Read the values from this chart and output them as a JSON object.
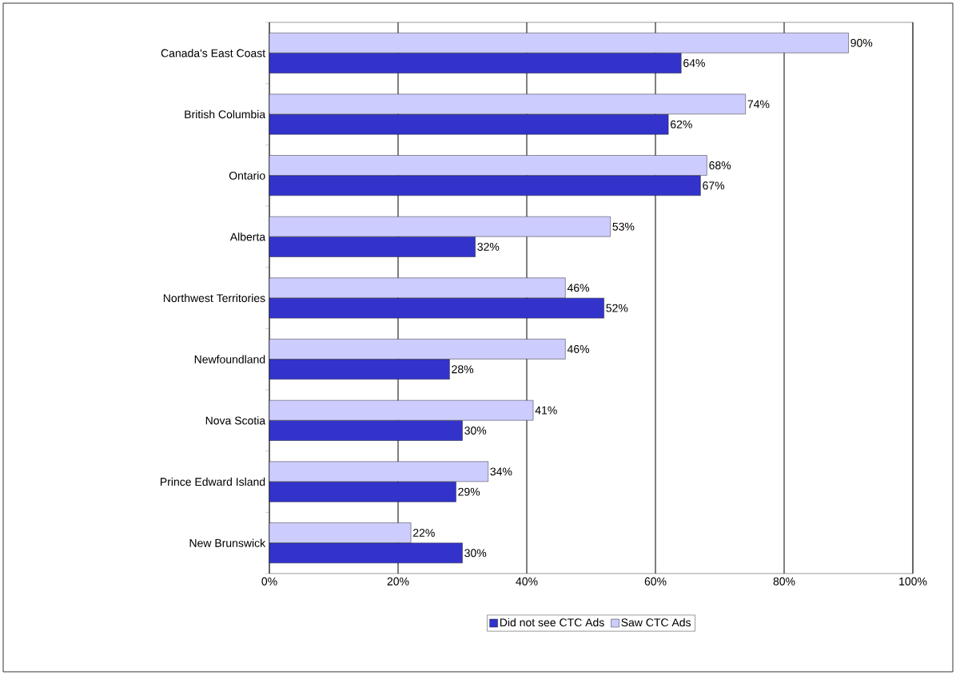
{
  "chart_data": {
    "type": "bar",
    "orientation": "horizontal",
    "categories": [
      "Canada's East Coast",
      "British Columbia",
      "Ontario",
      "Alberta",
      "Northwest Territories",
      "Newfoundland",
      "Nova Scotia",
      "Prince Edward Island",
      "New Brunswick"
    ],
    "series": [
      {
        "name": "Did not see CTC Ads",
        "color": "#3333cc",
        "values": [
          64,
          62,
          67,
          32,
          52,
          28,
          30,
          29,
          30
        ],
        "value_labels": [
          "64%",
          "62%",
          "67%",
          "32%",
          "52%",
          "28%",
          "30%",
          "29%",
          "30%"
        ]
      },
      {
        "name": "Saw CTC Ads",
        "color": "#ccccff",
        "values": [
          90,
          74,
          68,
          53,
          46,
          46,
          41,
          34,
          22
        ],
        "value_labels": [
          "90%",
          "74%",
          "68%",
          "53%",
          "46%",
          "46%",
          "41%",
          "34%",
          "22%"
        ]
      }
    ],
    "xlim": [
      0,
      100
    ],
    "xticks": [
      {
        "value": 0,
        "label": "0%"
      },
      {
        "value": 20,
        "label": "20%"
      },
      {
        "value": 40,
        "label": "40%"
      },
      {
        "value": 60,
        "label": "60%"
      },
      {
        "value": 80,
        "label": "80%"
      },
      {
        "value": 100,
        "label": "100%"
      }
    ],
    "grid": "x",
    "legend": "bottom"
  }
}
